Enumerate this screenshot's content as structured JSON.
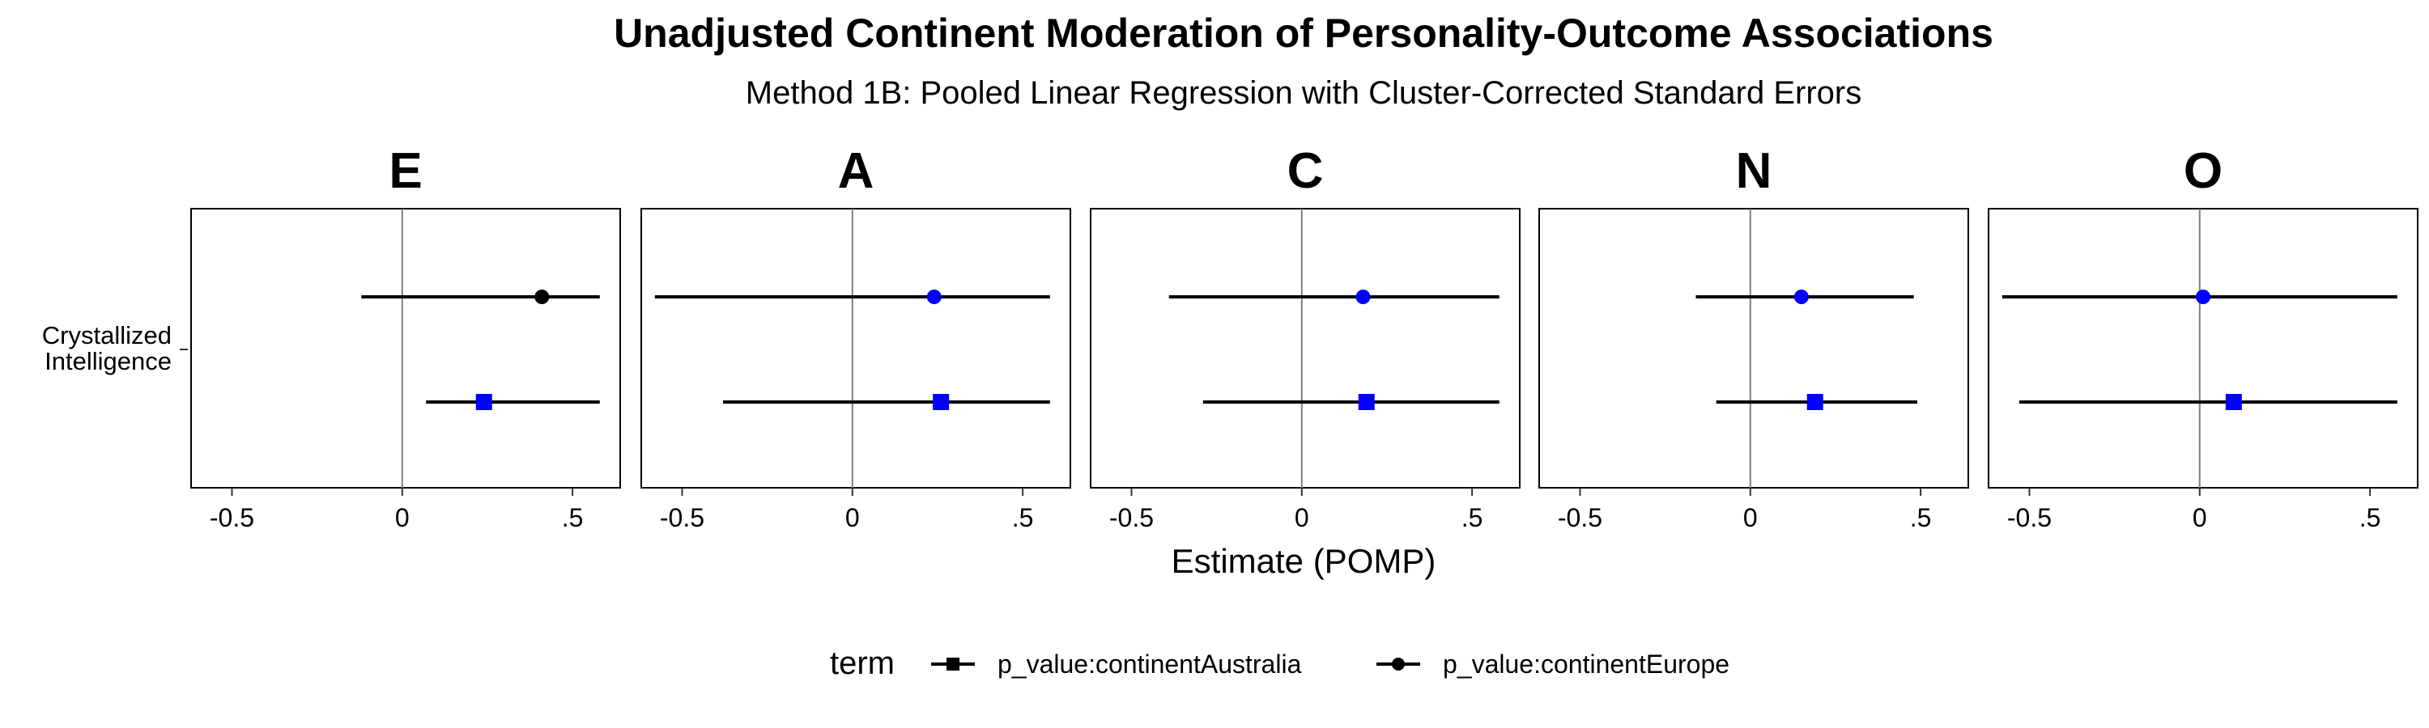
{
  "chart_data": {
    "type": "scatter",
    "subtype": "forest-plot",
    "title": "Unadjusted Continent Moderation of Personality-Outcome Associations",
    "subtitle": "Method 1B: Pooled Linear Regression with Cluster-Corrected Standard Errors",
    "xlabel": "Estimate (POMP)",
    "y_category": "Crystallized\nIntelligence",
    "xlim": [
      -0.62,
      0.64
    ],
    "x_ticks": [
      -0.5,
      0,
      0.5
    ],
    "x_tick_labels": [
      "-0.5",
      "0",
      ".5"
    ],
    "reference_line": 0,
    "legend": {
      "title": "term",
      "position": "bottom",
      "entries": [
        {
          "label": "p_value:continentAustralia",
          "shape": "square"
        },
        {
          "label": "p_value:continentEurope",
          "shape": "circle"
        }
      ]
    },
    "colors": {
      "significant": "#0000ff",
      "nonsignificant": "#000000"
    },
    "facets": [
      {
        "label": "E",
        "terms": [
          {
            "term": "p_value:continentEurope",
            "estimate": 0.41,
            "lower": -0.12,
            "upper": 0.58,
            "color": "#000000"
          },
          {
            "term": "p_value:continentAustralia",
            "estimate": 0.24,
            "lower": 0.07,
            "upper": 0.58,
            "color": "#0000ff"
          }
        ]
      },
      {
        "label": "A",
        "terms": [
          {
            "term": "p_value:continentAustralia",
            "estimate": 0.26,
            "lower": -0.38,
            "upper": 0.58,
            "color": "#0000ff"
          },
          {
            "term": "p_value:continentEurope",
            "estimate": 0.24,
            "lower": -0.58,
            "upper": 0.58,
            "color": "#0000ff"
          }
        ]
      },
      {
        "label": "C",
        "terms": [
          {
            "term": "p_value:continentAustralia",
            "estimate": 0.19,
            "lower": -0.29,
            "upper": 0.58,
            "color": "#0000ff"
          },
          {
            "term": "p_value:continentEurope",
            "estimate": 0.18,
            "lower": -0.39,
            "upper": 0.58,
            "color": "#0000ff"
          }
        ]
      },
      {
        "label": "N",
        "terms": [
          {
            "term": "p_value:continentAustralia",
            "estimate": 0.19,
            "lower": -0.1,
            "upper": 0.49,
            "color": "#0000ff"
          },
          {
            "term": "p_value:continentEurope",
            "estimate": 0.15,
            "lower": -0.16,
            "upper": 0.48,
            "color": "#0000ff"
          }
        ]
      },
      {
        "label": "O",
        "terms": [
          {
            "term": "p_value:continentAustralia",
            "estimate": 0.1,
            "lower": -0.53,
            "upper": 0.58,
            "color": "#0000ff"
          },
          {
            "term": "p_value:continentEurope",
            "estimate": 0.01,
            "lower": -0.58,
            "upper": 0.58,
            "color": "#0000ff"
          }
        ]
      }
    ]
  }
}
